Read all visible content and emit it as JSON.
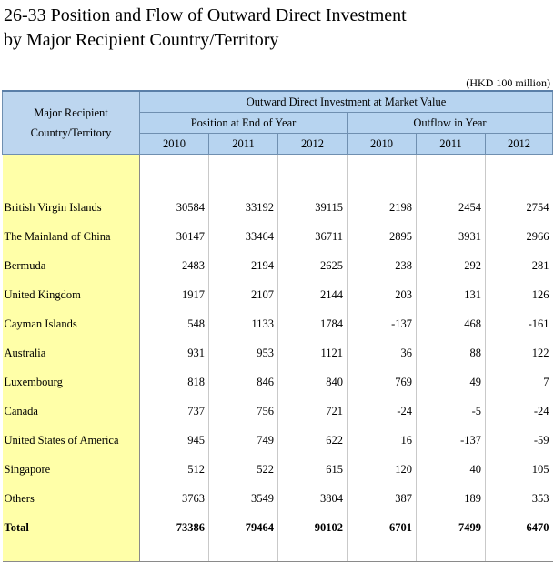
{
  "title": "26-33  Position and Flow of Outward Direct Investment\nby Major Recipient Country/Territory",
  "unit": "(HKD 100 million)",
  "headers": {
    "row_header_line1": "Major Recipient",
    "row_header_line2": "Country/Territory",
    "group": "Outward Direct Investment at Market Value",
    "position": "Position at End of Year",
    "outflow": "Outflow in Year",
    "years": [
      "2010",
      "2011",
      "2012",
      "2010",
      "2011",
      "2012"
    ]
  },
  "rows": [
    {
      "name": "British Virgin Islands",
      "values": [
        "30584",
        "33192",
        "39115",
        "2198",
        "2454",
        "2754"
      ]
    },
    {
      "name": "The Mainland of China",
      "values": [
        "30147",
        "33464",
        "36711",
        "2895",
        "3931",
        "2966"
      ]
    },
    {
      "name": "Bermuda",
      "values": [
        "2483",
        "2194",
        "2625",
        "238",
        "292",
        "281"
      ]
    },
    {
      "name": "United Kingdom",
      "values": [
        "1917",
        "2107",
        "2144",
        "203",
        "131",
        "126"
      ]
    },
    {
      "name": "Cayman Islands",
      "values": [
        "548",
        "1133",
        "1784",
        "-137",
        "468",
        "-161"
      ]
    },
    {
      "name": "Australia",
      "values": [
        "931",
        "953",
        "1121",
        "36",
        "88",
        "122"
      ]
    },
    {
      "name": "Luxembourg",
      "values": [
        "818",
        "846",
        "840",
        "769",
        "49",
        "7"
      ]
    },
    {
      "name": "Canada",
      "values": [
        "737",
        "756",
        "721",
        "-24",
        "-5",
        "-24"
      ]
    },
    {
      "name": "United States of America",
      "values": [
        "945",
        "749",
        "622",
        "16",
        "-137",
        "-59"
      ]
    },
    {
      "name": "Singapore",
      "values": [
        "512",
        "522",
        "615",
        "120",
        "40",
        "105"
      ]
    },
    {
      "name": "Others",
      "values": [
        "3763",
        "3549",
        "3804",
        "387",
        "189",
        "353"
      ]
    }
  ],
  "total": {
    "name": "Total",
    "values": [
      "73386",
      "79464",
      "90102",
      "6701",
      "7499",
      "6470"
    ]
  }
}
